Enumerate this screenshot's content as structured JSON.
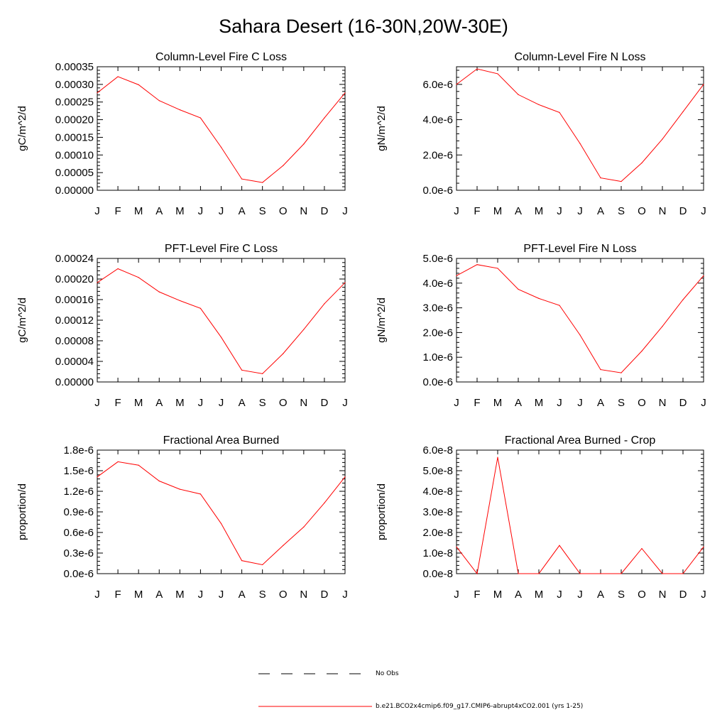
{
  "title": "Sahara Desert (16-30N,20W-30E)",
  "series_color": "#ff0000",
  "chart_data": [
    {
      "type": "line",
      "title": "Column-Level Fire C Loss",
      "ylabel": "gC/m^2/d",
      "categories": [
        "J",
        "F",
        "M",
        "A",
        "M",
        "J",
        "J",
        "A",
        "S",
        "O",
        "N",
        "D",
        "J"
      ],
      "ylim": [
        0,
        0.00035
      ],
      "yticks": [
        0,
        5e-05,
        0.0001,
        0.00015,
        0.0002,
        0.00025,
        0.0003,
        0.00035
      ],
      "ytick_labels": [
        "0.00000",
        "0.00005",
        "0.00010",
        "0.00015",
        "0.00020",
        "0.00025",
        "0.00030",
        "0.00035"
      ],
      "values": [
        0.000276,
        0.000322,
        0.000299,
        0.000254,
        0.000228,
        0.000205,
        0.000122,
        3.2e-05,
        2.2e-05,
        7e-05,
        0.000131,
        0.000205,
        0.000276
      ]
    },
    {
      "type": "line",
      "title": "Column-Level Fire N Loss",
      "ylabel": "gN/m^2/d",
      "categories": [
        "J",
        "F",
        "M",
        "A",
        "M",
        "J",
        "J",
        "A",
        "S",
        "O",
        "N",
        "D",
        "J"
      ],
      "ylim": [
        0,
        7e-06
      ],
      "yticks": [
        0,
        2e-06,
        4e-06,
        6e-06
      ],
      "ytick_labels": [
        "0.0e-6",
        "2.0e-6",
        "4.0e-6",
        "6.0e-6"
      ],
      "values": [
        6e-06,
        6.88e-06,
        6.6e-06,
        5.42e-06,
        4.85e-06,
        4.41e-06,
        2.65e-06,
        7e-07,
        5e-07,
        1.55e-06,
        2.9e-06,
        4.45e-06,
        6e-06
      ]
    },
    {
      "type": "line",
      "title": "PFT-Level Fire C Loss",
      "ylabel": "gC/m^2/d",
      "categories": [
        "J",
        "F",
        "M",
        "A",
        "M",
        "J",
        "J",
        "A",
        "S",
        "O",
        "N",
        "D",
        "J"
      ],
      "ylim": [
        0,
        0.00024
      ],
      "yticks": [
        0,
        4e-05,
        8e-05,
        0.00012,
        0.00016,
        0.0002,
        0.00024
      ],
      "ytick_labels": [
        "0.00000",
        "0.00004",
        "0.00008",
        "0.00012",
        "0.00016",
        "0.00020",
        "0.00024"
      ],
      "values": [
        0.000193,
        0.00022,
        0.000203,
        0.000175,
        0.000158,
        0.000143,
        8.7e-05,
        2.3e-05,
        1.6e-05,
        5.5e-05,
        0.000102,
        0.000152,
        0.000193
      ]
    },
    {
      "type": "line",
      "title": "PFT-Level Fire N Loss",
      "ylabel": "gN/m^2/d",
      "categories": [
        "J",
        "F",
        "M",
        "A",
        "M",
        "J",
        "J",
        "A",
        "S",
        "O",
        "N",
        "D",
        "J"
      ],
      "ylim": [
        0,
        5e-06
      ],
      "yticks": [
        0,
        1e-06,
        2e-06,
        3e-06,
        4e-06,
        5e-06
      ],
      "ytick_labels": [
        "0.0e-6",
        "1.0e-6",
        "2.0e-6",
        "3.0e-6",
        "4.0e-6",
        "5.0e-6"
      ],
      "values": [
        4.3e-06,
        4.75e-06,
        4.6e-06,
        3.75e-06,
        3.38e-06,
        3.1e-06,
        1.9e-06,
        5e-07,
        3.7e-07,
        1.25e-06,
        2.25e-06,
        3.33e-06,
        4.3e-06
      ]
    },
    {
      "type": "line",
      "title": "Fractional Area Burned",
      "ylabel": "proportion/d",
      "categories": [
        "J",
        "F",
        "M",
        "A",
        "M",
        "J",
        "J",
        "A",
        "S",
        "O",
        "N",
        "D",
        "J"
      ],
      "ylim": [
        0,
        1.8e-06
      ],
      "yticks": [
        0,
        3e-07,
        6e-07,
        9e-07,
        1.2e-06,
        1.5e-06,
        1.8e-06
      ],
      "ytick_labels": [
        "0.0e-6",
        "0.3e-6",
        "0.6e-6",
        "0.9e-6",
        "1.2e-6",
        "1.5e-6",
        "1.8e-6"
      ],
      "values": [
        1.41e-06,
        1.63e-06,
        1.58e-06,
        1.35e-06,
        1.23e-06,
        1.16e-06,
        7.3e-07,
        1.9e-07,
        1.3e-07,
        4.1e-07,
        6.8e-07,
        1.03e-06,
        1.41e-06
      ]
    },
    {
      "type": "line",
      "title": "Fractional Area Burned - Crop",
      "ylabel": "proportion/d",
      "categories": [
        "J",
        "F",
        "M",
        "A",
        "M",
        "J",
        "J",
        "A",
        "S",
        "O",
        "N",
        "D",
        "J"
      ],
      "ylim": [
        0,
        6e-08
      ],
      "yticks": [
        0,
        1e-08,
        2e-08,
        3e-08,
        4e-08,
        5e-08,
        6e-08
      ],
      "ytick_labels": [
        "0.0e-8",
        "1.0e-8",
        "2.0e-8",
        "3.0e-8",
        "4.0e-8",
        "5.0e-8",
        "6.0e-8"
      ],
      "values": [
        1.3e-08,
        0,
        5.65e-08,
        0,
        0,
        1.37e-08,
        0,
        0,
        0,
        1.22e-08,
        0,
        0,
        1.3e-08
      ]
    }
  ],
  "legend": {
    "items": [
      {
        "label": "No Obs",
        "style": "dashed",
        "color": "#000000"
      },
      {
        "label": "b.e21.BCO2x4cmip6.f09_g17.CMIP6-abrupt4xCO2.001 (yrs 1-25)",
        "style": "solid",
        "color": "#ff0000"
      }
    ]
  }
}
